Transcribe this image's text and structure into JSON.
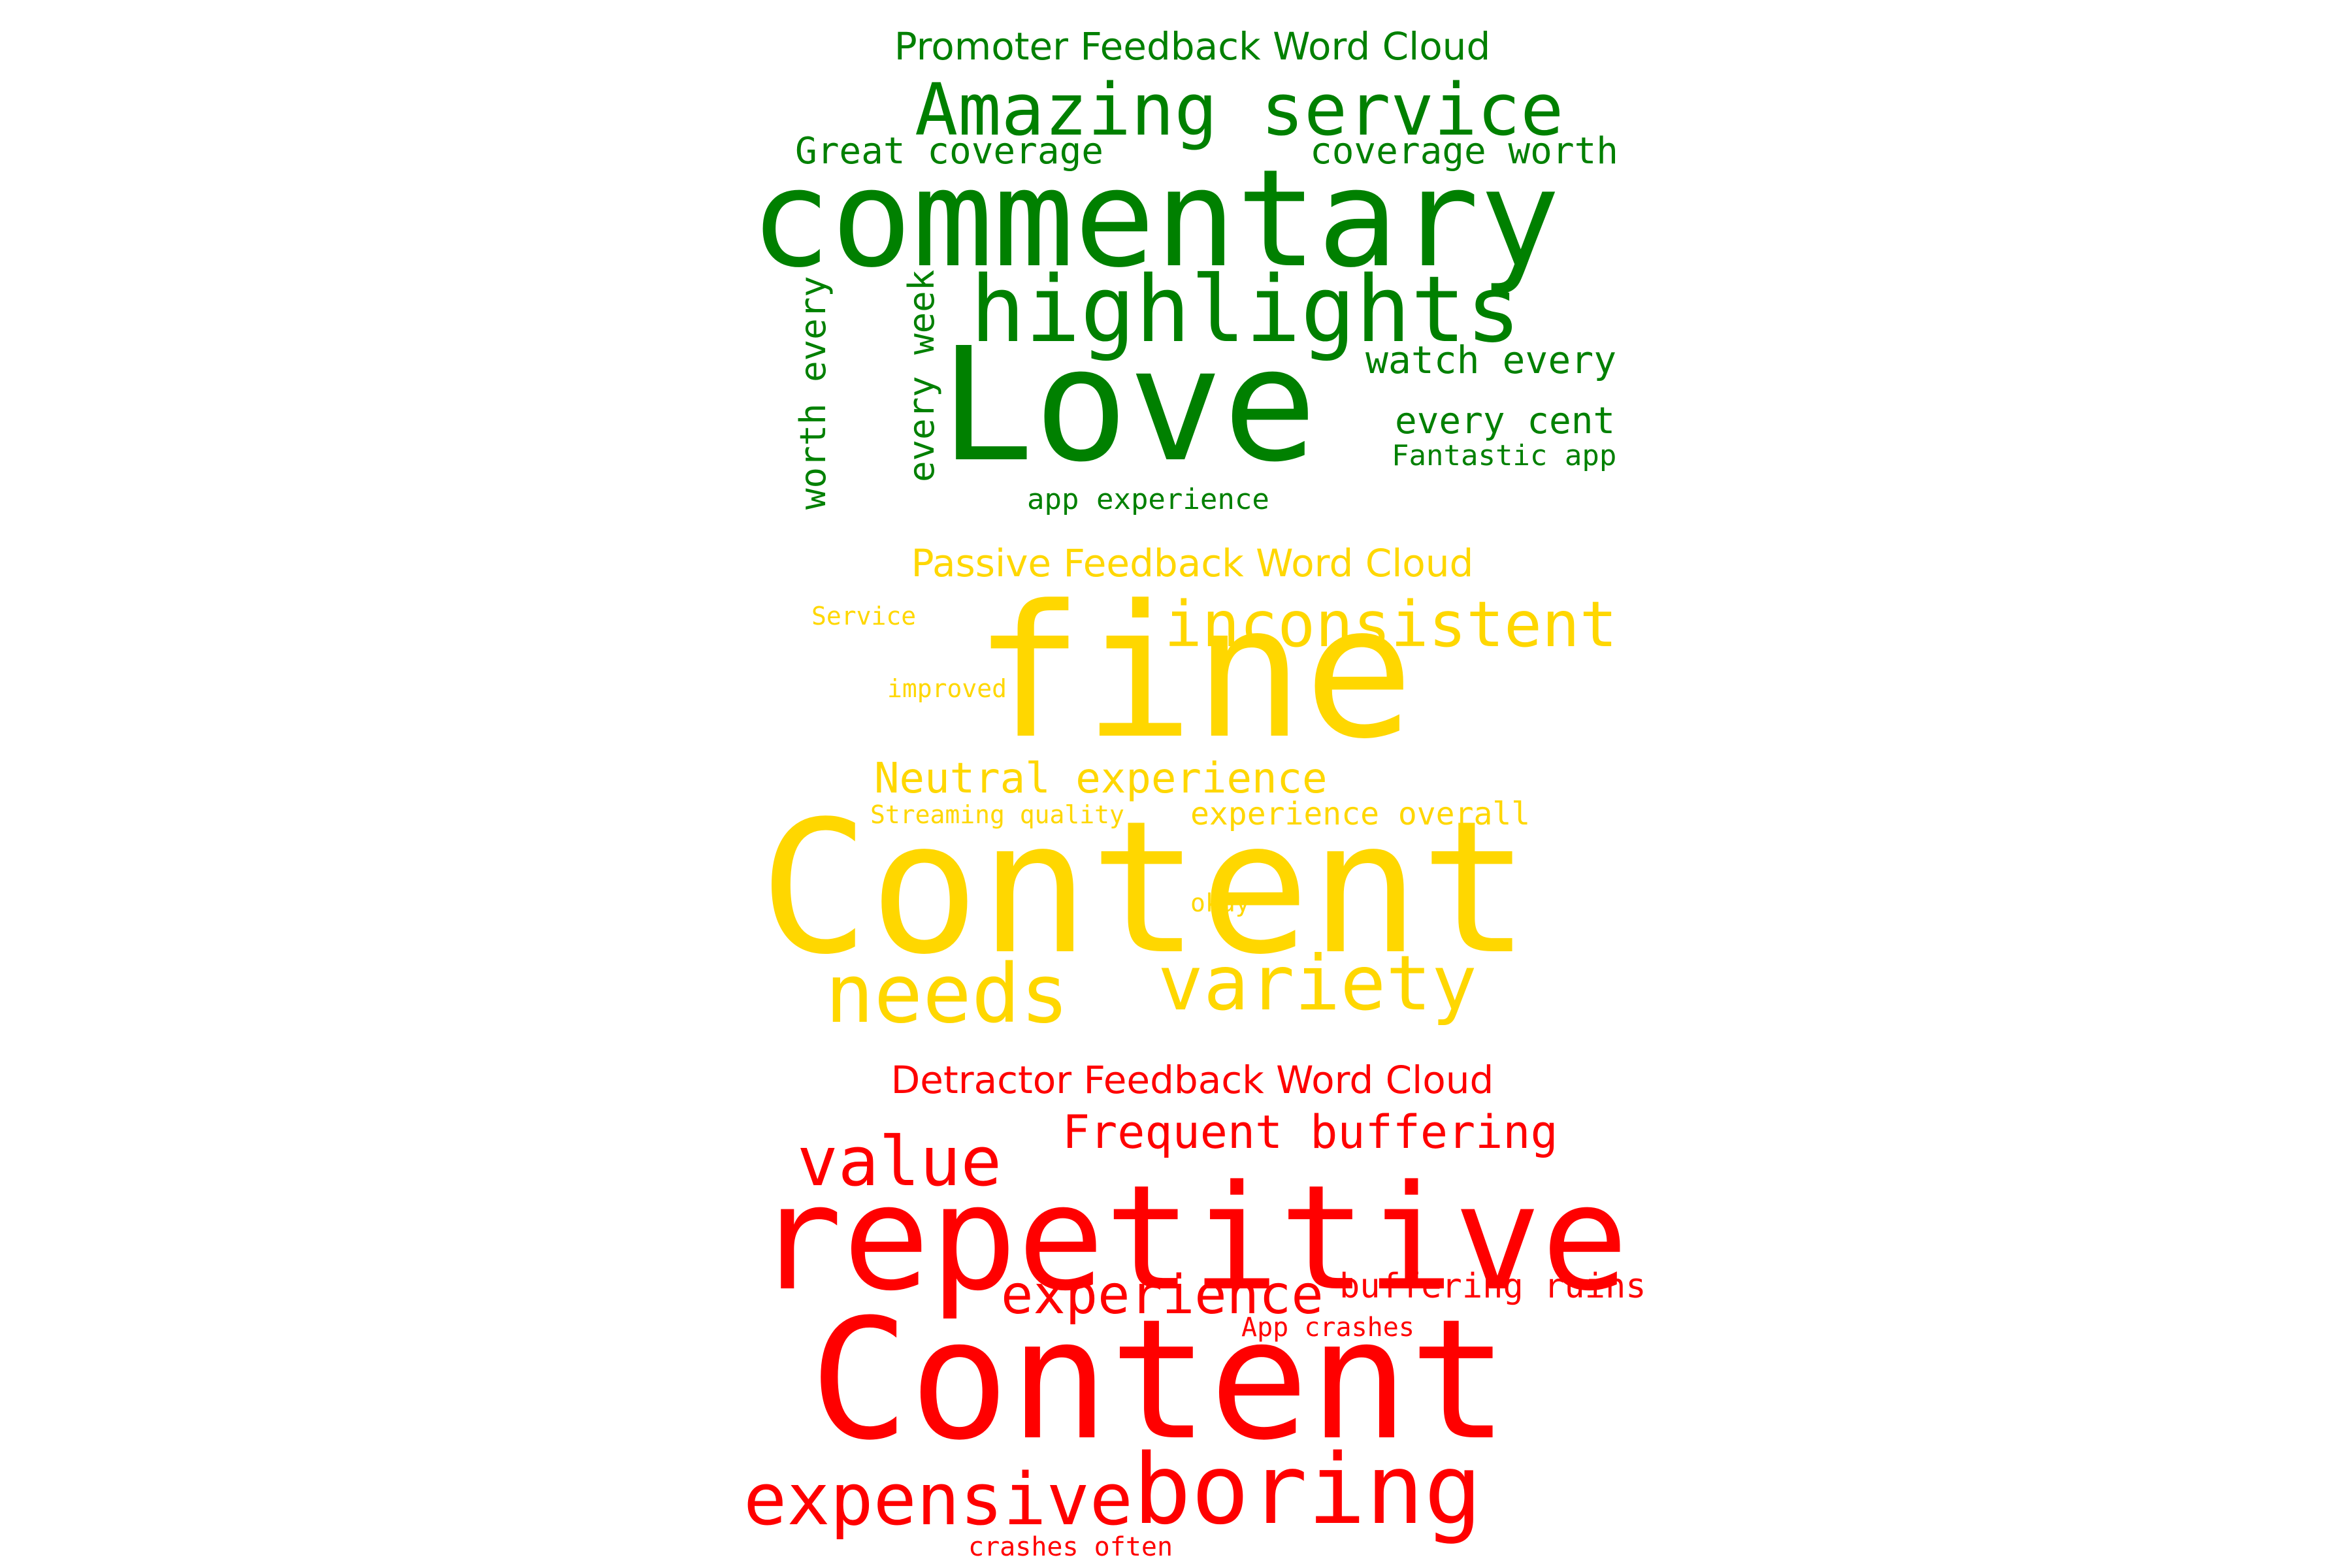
{
  "clouds": {
    "promoter": {
      "title": "Promoter Feedback Word Cloud",
      "color": "#008000",
      "words": {
        "love": "Love",
        "commentary": "commentary",
        "highlights": "highlights",
        "amazing_service": "Amazing service",
        "great_coverage": "Great coverage",
        "coverage_worth": "coverage worth",
        "watch_every": "watch every",
        "every_cent": "every cent",
        "fantastic_app": "Fantastic app",
        "app_experience": "app experience",
        "worth_every": "worth every",
        "every_week": "every week"
      }
    },
    "passive": {
      "title": "Passive Feedback Word Cloud",
      "color": "#ffd700",
      "words": {
        "content": "Content",
        "fine": "fine",
        "inconsistent": "inconsistent",
        "service": "Service",
        "improved": "improved",
        "neutral_experience": "Neutral experience",
        "streaming_quality": "Streaming quality",
        "experience_overall": "experience overall",
        "okay": "okay",
        "needs": "needs",
        "variety": "variety"
      }
    },
    "detractor": {
      "title": "Detractor Feedback Word Cloud",
      "color": "#ff0000",
      "words": {
        "repetitive": "repetitive",
        "content": "Content",
        "value": "value",
        "frequent_buffering": "Frequent buffering",
        "experience": "experience",
        "buffering_ruins": "buffering ruins",
        "app_crashes": "App crashes",
        "expensive": "expensive",
        "boring": "boring",
        "crashes_often": "crashes often"
      }
    }
  }
}
